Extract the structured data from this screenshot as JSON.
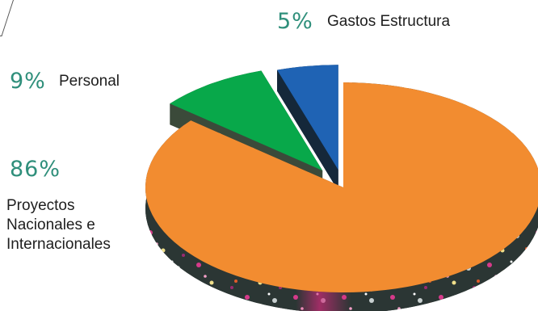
{
  "chart_data": {
    "type": "pie",
    "title": "",
    "slices": [
      {
        "label": "Gastos Estructura",
        "value": 5,
        "value_label": "5%",
        "color": "#1f63b4"
      },
      {
        "label": "Personal",
        "value": 9,
        "value_label": "9%",
        "color": "#08a84a"
      },
      {
        "label": "Proyectos Nacionales e Internacionales",
        "value": 86,
        "value_label": "86%",
        "color": "#f28c30"
      }
    ],
    "legend": "none",
    "labels": {
      "gastos_pct": "5%",
      "gastos": "Gastos Estructura",
      "personal_pct": "9%",
      "personal": "Personal",
      "proyectos_pct": "86%",
      "proyectos_line1": "Proyectos",
      "proyectos_line2": "Nacionales e",
      "proyectos_line3": "Internacionales"
    }
  }
}
